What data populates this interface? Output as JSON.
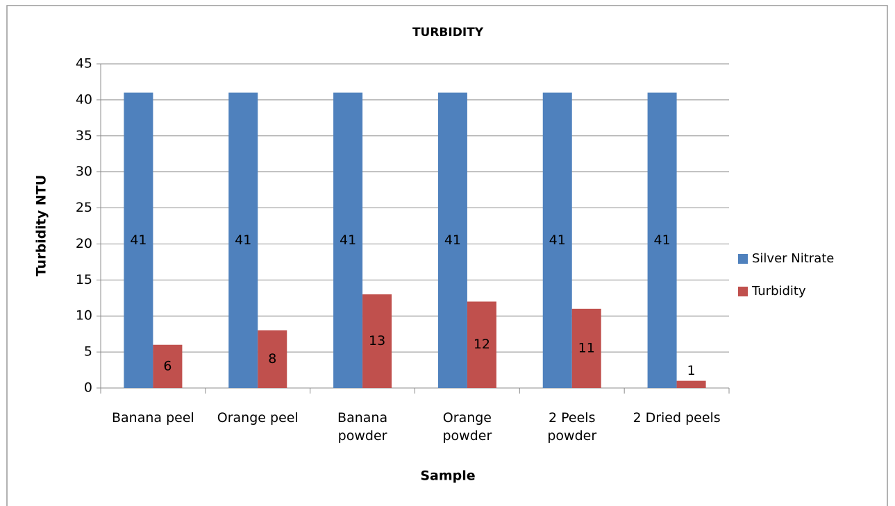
{
  "chart_data": {
    "type": "bar",
    "title": "TURBIDITY",
    "x_label": "Sample",
    "y_label": "Turbidity NTU",
    "categories": [
      "Banana peel",
      "Orange peel",
      "Banana\npowder",
      "Orange\npowder",
      "2 Peels\npowder",
      "2 Dried peels"
    ],
    "series": [
      {
        "name": "Silver Nitrate",
        "color": "#4f81bd",
        "values": [
          41,
          41,
          41,
          41,
          41,
          41
        ]
      },
      {
        "name": "Turbidity",
        "color": "#c0504d",
        "values": [
          6,
          8,
          13,
          12,
          11,
          1
        ]
      }
    ],
    "ylim": [
      0,
      45
    ],
    "yticks": [
      0,
      5,
      10,
      15,
      20,
      25,
      30,
      35,
      40,
      45
    ],
    "grid": true,
    "legend": "right"
  }
}
